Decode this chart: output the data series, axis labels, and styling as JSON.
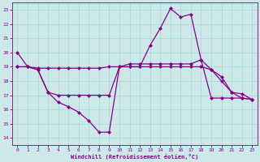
{
  "xlabel": "Windchill (Refroidissement éolien,°C)",
  "bg_color": "#cce8e8",
  "line_color": "#880088",
  "grid_color": "#aad4d4",
  "xlim": [
    -0.5,
    23.5
  ],
  "ylim": [
    13.5,
    23.5
  ],
  "yticks": [
    14,
    15,
    16,
    17,
    18,
    19,
    20,
    21,
    22,
    23
  ],
  "xticks": [
    0,
    1,
    2,
    3,
    4,
    5,
    6,
    7,
    8,
    9,
    10,
    11,
    12,
    13,
    14,
    15,
    16,
    17,
    18,
    19,
    20,
    21,
    22,
    23
  ],
  "line1_x": [
    0,
    1,
    2,
    3,
    4,
    5,
    6,
    7,
    8,
    9,
    10,
    11,
    12,
    13,
    14,
    15,
    16,
    17,
    18,
    19,
    20,
    21,
    22,
    23
  ],
  "line1_y": [
    20,
    19,
    18.8,
    17.2,
    16.5,
    16.2,
    15.8,
    15.2,
    14.4,
    14.4,
    19.0,
    19.0,
    19.0,
    20.5,
    21.7,
    23.1,
    22.5,
    22.7,
    19.5,
    18.8,
    18.3,
    17.2,
    17.1,
    16.7
  ],
  "line2_x": [
    0,
    1,
    2,
    3,
    4,
    5,
    6,
    7,
    8,
    9,
    10,
    11,
    12,
    13,
    14,
    15,
    16,
    17,
    18,
    19,
    20,
    21,
    22,
    23
  ],
  "line2_y": [
    19.0,
    19.0,
    18.8,
    17.2,
    17.0,
    17.0,
    17.0,
    17.0,
    17.0,
    17.0,
    19.0,
    19.2,
    19.2,
    19.2,
    19.2,
    19.2,
    19.2,
    19.2,
    19.5,
    16.8,
    16.8,
    16.8,
    16.8,
    16.7
  ],
  "line3_x": [
    0,
    1,
    2,
    3,
    4,
    5,
    6,
    7,
    8,
    9,
    10,
    11,
    12,
    13,
    14,
    15,
    16,
    17,
    18,
    19,
    20,
    21,
    22,
    23
  ],
  "line3_y": [
    19.0,
    19.0,
    18.9,
    18.9,
    18.9,
    18.9,
    18.9,
    18.9,
    18.9,
    19.0,
    19.0,
    19.0,
    19.0,
    19.0,
    19.0,
    19.0,
    19.0,
    19.0,
    19.0,
    18.8,
    18.0,
    17.2,
    16.8,
    16.7
  ],
  "markersize": 2.5
}
